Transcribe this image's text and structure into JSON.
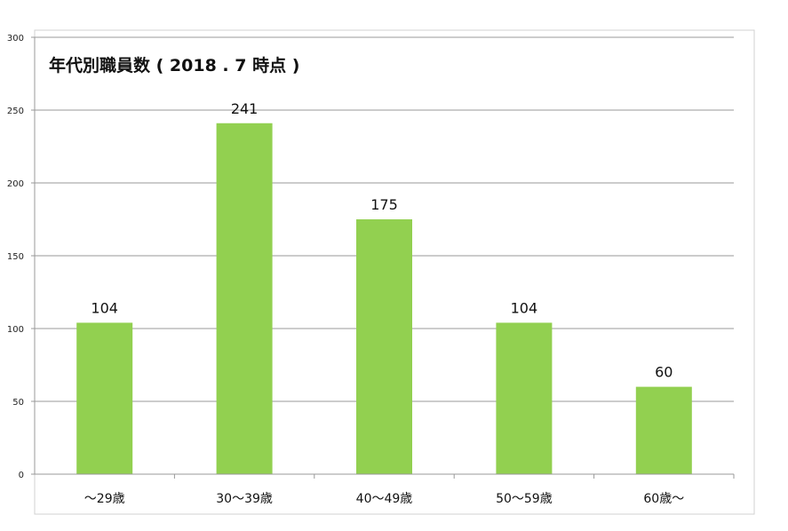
{
  "chart_data": {
    "type": "bar",
    "title": "年代別職員数 ( 2018 . 7 時点 )",
    "xlabel": "",
    "ylabel": "",
    "categories": [
      "～29歳",
      "30～39歳",
      "40～49歳",
      "50～59歳",
      "60歳～"
    ],
    "values": [
      104,
      241,
      175,
      104,
      60
    ],
    "data_labels": [
      "104",
      "241",
      "175",
      "104",
      "60"
    ],
    "ylim": [
      0,
      300
    ],
    "yticks": [
      0,
      50,
      100,
      150,
      200,
      250,
      300
    ],
    "ytick_labels": [
      "0",
      "50",
      "100",
      "150",
      "200",
      "250",
      "300"
    ],
    "grid": true,
    "legend": "none",
    "bar_color": "#92d050"
  }
}
